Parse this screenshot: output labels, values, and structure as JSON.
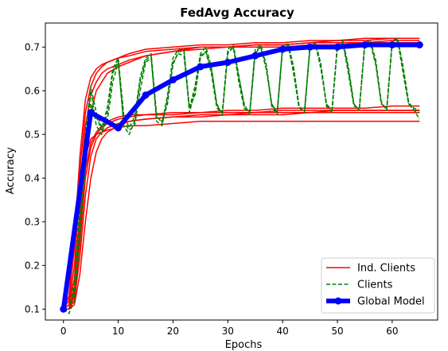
{
  "chart_data": {
    "type": "line",
    "title": "FedAvg Accuracy",
    "xlabel": "Epochs",
    "ylabel": "Accuracy",
    "xlim": [
      -3.3,
      68.3
    ],
    "ylim": [
      0.075,
      0.755
    ],
    "x_ticks": [
      0,
      10,
      20,
      30,
      40,
      50,
      60
    ],
    "y_ticks": [
      0.1,
      0.2,
      0.3,
      0.4,
      0.5,
      0.6,
      0.7
    ],
    "grid": false,
    "legend_position": "lower-right",
    "colors": {
      "ind_clients": "#ff0000",
      "clients": "#008000",
      "global": "#0000ff"
    },
    "series": [
      {
        "name": "Ind. Clients",
        "style": "solid",
        "note": "~20 individual client curves; representative traces",
        "traces": [
          {
            "x": [
              0,
              1,
              2,
              3,
              4,
              5,
              6,
              7,
              8,
              10,
              12,
              15,
              20,
              25,
              30,
              35,
              40,
              45,
              50,
              55,
              60,
              65
            ],
            "y": [
              0.1,
              0.13,
              0.26,
              0.45,
              0.58,
              0.63,
              0.65,
              0.66,
              0.665,
              0.675,
              0.68,
              0.69,
              0.695,
              0.7,
              0.7,
              0.705,
              0.705,
              0.71,
              0.71,
              0.71,
              0.715,
              0.715
            ]
          },
          {
            "x": [
              0,
              1,
              2,
              3,
              4,
              5,
              6,
              7,
              8,
              10,
              12,
              15,
              20,
              25,
              30,
              35,
              40,
              45,
              50,
              55,
              60,
              65
            ],
            "y": [
              0.1,
              0.11,
              0.2,
              0.38,
              0.52,
              0.59,
              0.62,
              0.64,
              0.65,
              0.66,
              0.67,
              0.68,
              0.69,
              0.695,
              0.7,
              0.7,
              0.7,
              0.705,
              0.705,
              0.71,
              0.71,
              0.71
            ]
          },
          {
            "x": [
              0,
              1,
              2,
              3,
              4,
              5,
              6,
              7,
              8,
              10,
              12,
              15,
              20,
              25,
              30,
              35,
              40,
              45,
              50,
              55,
              60,
              65
            ],
            "y": [
              0.1,
              0.1,
              0.15,
              0.3,
              0.46,
              0.55,
              0.6,
              0.62,
              0.64,
              0.655,
              0.665,
              0.68,
              0.69,
              0.7,
              0.7,
              0.705,
              0.705,
              0.71,
              0.715,
              0.715,
              0.72,
              0.72
            ]
          },
          {
            "x": [
              0,
              1,
              2,
              3,
              4,
              5,
              6,
              7,
              8,
              10,
              12,
              15,
              20,
              25,
              30,
              35,
              40,
              45,
              50,
              55,
              60,
              65
            ],
            "y": [
              0.1,
              0.12,
              0.24,
              0.42,
              0.55,
              0.61,
              0.64,
              0.655,
              0.665,
              0.675,
              0.685,
              0.695,
              0.7,
              0.705,
              0.705,
              0.71,
              0.71,
              0.715,
              0.715,
              0.72,
              0.72,
              0.72
            ]
          },
          {
            "x": [
              0,
              1,
              2,
              3,
              4,
              5,
              6,
              7,
              8,
              10,
              12,
              15,
              20,
              25,
              30,
              35,
              40,
              45,
              50,
              55,
              60,
              65
            ],
            "y": [
              0.1,
              0.1,
              0.12,
              0.22,
              0.36,
              0.45,
              0.49,
              0.505,
              0.515,
              0.525,
              0.53,
              0.535,
              0.54,
              0.545,
              0.545,
              0.55,
              0.55,
              0.55,
              0.555,
              0.555,
              0.555,
              0.555
            ]
          },
          {
            "x": [
              0,
              1,
              2,
              3,
              4,
              5,
              6,
              7,
              8,
              10,
              12,
              15,
              20,
              25,
              30,
              35,
              40,
              45,
              50,
              55,
              60,
              65
            ],
            "y": [
              0.1,
              0.1,
              0.14,
              0.28,
              0.42,
              0.48,
              0.505,
              0.52,
              0.53,
              0.54,
              0.545,
              0.545,
              0.55,
              0.55,
              0.555,
              0.555,
              0.56,
              0.56,
              0.56,
              0.56,
              0.565,
              0.565
            ]
          },
          {
            "x": [
              0,
              1,
              2,
              3,
              4,
              5,
              6,
              7,
              8,
              10,
              12,
              15,
              20,
              25,
              30,
              35,
              40,
              45,
              50,
              55,
              60,
              65
            ],
            "y": [
              0.1,
              0.11,
              0.17,
              0.32,
              0.45,
              0.49,
              0.5,
              0.505,
              0.51,
              0.515,
              0.52,
              0.52,
              0.525,
              0.53,
              0.53,
              0.53,
              0.53,
              0.53,
              0.53,
              0.53,
              0.53,
              0.53
            ]
          },
          {
            "x": [
              0,
              1,
              2,
              3,
              4,
              5,
              6,
              7,
              8,
              10,
              12,
              15,
              20,
              25,
              30,
              35,
              40,
              45,
              50,
              55,
              60,
              65
            ],
            "y": [
              0.1,
              0.1,
              0.11,
              0.18,
              0.3,
              0.4,
              0.46,
              0.49,
              0.505,
              0.52,
              0.53,
              0.535,
              0.54,
              0.54,
              0.545,
              0.545,
              0.545,
              0.55,
              0.55,
              0.55,
              0.55,
              0.55
            ]
          },
          {
            "x": [
              0,
              1,
              2,
              3,
              4,
              5,
              6,
              7,
              8,
              10,
              12,
              15,
              20,
              25,
              30,
              35,
              40,
              45,
              50,
              55,
              60,
              65
            ],
            "y": [
              0.1,
              0.1,
              0.13,
              0.25,
              0.4,
              0.47,
              0.5,
              0.515,
              0.525,
              0.535,
              0.54,
              0.545,
              0.545,
              0.55,
              0.55,
              0.55,
              0.555,
              0.555,
              0.555,
              0.555,
              0.555,
              0.555
            ]
          }
        ]
      },
      {
        "name": "Clients",
        "style": "dashed",
        "note": "clients alternating between local (~0.70) and global (~0.55) accuracy",
        "traces": [
          {
            "x": [
              0,
              1,
              2,
              3,
              4,
              5,
              6,
              7,
              8,
              9,
              10,
              11,
              12,
              13,
              14,
              15,
              16,
              17,
              18,
              19,
              20,
              21,
              22,
              23,
              24,
              25,
              26,
              27,
              28,
              29,
              30,
              31,
              32,
              33,
              34,
              35,
              36,
              37,
              38,
              39,
              40,
              41,
              42,
              43,
              44,
              45,
              46,
              47,
              48,
              49,
              50,
              51,
              52,
              53,
              54,
              55,
              56,
              57,
              58,
              59,
              60,
              61,
              62,
              63,
              64,
              65
            ],
            "y": [
              0.1,
              0.1,
              0.14,
              0.3,
              0.46,
              0.6,
              0.52,
              0.5,
              0.55,
              0.64,
              0.67,
              0.52,
              0.5,
              0.53,
              0.62,
              0.67,
              0.68,
              0.53,
              0.52,
              0.58,
              0.66,
              0.69,
              0.69,
              0.55,
              0.6,
              0.68,
              0.69,
              0.64,
              0.56,
              0.55,
              0.69,
              0.7,
              0.62,
              0.56,
              0.55,
              0.69,
              0.7,
              0.65,
              0.57,
              0.55,
              0.7,
              0.705,
              0.64,
              0.56,
              0.555,
              0.7,
              0.705,
              0.65,
              0.57,
              0.555,
              0.705,
              0.71,
              0.64,
              0.565,
              0.56,
              0.705,
              0.71,
              0.66,
              0.57,
              0.56,
              0.71,
              0.715,
              0.64,
              0.57,
              0.56,
              0.555
            ]
          },
          {
            "x": [
              0,
              1,
              2,
              3,
              4,
              5,
              6,
              7,
              8,
              9,
              10,
              11,
              12,
              13,
              14,
              15,
              16,
              17,
              18,
              19,
              20,
              21,
              22,
              23,
              24,
              25,
              26,
              27,
              28,
              29,
              30,
              31,
              32,
              33,
              34,
              35,
              36,
              37,
              38,
              39,
              40,
              41,
              42,
              43,
              44,
              45,
              46,
              47,
              48,
              49,
              50,
              51,
              52,
              53,
              54,
              55,
              56,
              57,
              58,
              59,
              60,
              61,
              62,
              63,
              64,
              65
            ],
            "y": [
              0.1,
              0.09,
              0.12,
              0.26,
              0.42,
              0.57,
              0.54,
              0.51,
              0.53,
              0.62,
              0.665,
              0.53,
              0.51,
              0.52,
              0.6,
              0.665,
              0.675,
              0.54,
              0.53,
              0.57,
              0.665,
              0.685,
              0.68,
              0.56,
              0.59,
              0.675,
              0.69,
              0.65,
              0.57,
              0.545,
              0.685,
              0.7,
              0.63,
              0.57,
              0.545,
              0.685,
              0.7,
              0.66,
              0.565,
              0.545,
              0.695,
              0.705,
              0.65,
              0.565,
              0.55,
              0.7,
              0.71,
              0.66,
              0.565,
              0.55,
              0.7,
              0.71,
              0.65,
              0.57,
              0.555,
              0.705,
              0.715,
              0.665,
              0.575,
              0.555,
              0.71,
              0.72,
              0.65,
              0.57,
              0.555,
              0.55
            ]
          },
          {
            "x": [
              0,
              1,
              2,
              3,
              4,
              5,
              6,
              7,
              8,
              9,
              10,
              11,
              12,
              13,
              14,
              15,
              16,
              17,
              18,
              19,
              20,
              21,
              22,
              23,
              24,
              25,
              26,
              27,
              28,
              29,
              30,
              31,
              32,
              33,
              34,
              35,
              36,
              37,
              38,
              39,
              40,
              41,
              42,
              43,
              44,
              45,
              46,
              47,
              48,
              49,
              50,
              51,
              52,
              53,
              54,
              55,
              56,
              57,
              58,
              59,
              60,
              61,
              62,
              63,
              64,
              65
            ],
            "y": [
              0.1,
              0.1,
              0.16,
              0.34,
              0.5,
              0.61,
              0.55,
              0.515,
              0.56,
              0.65,
              0.675,
              0.545,
              0.515,
              0.54,
              0.63,
              0.675,
              0.685,
              0.545,
              0.525,
              0.59,
              0.675,
              0.695,
              0.695,
              0.56,
              0.61,
              0.685,
              0.7,
              0.655,
              0.565,
              0.55,
              0.695,
              0.705,
              0.635,
              0.565,
              0.55,
              0.695,
              0.705,
              0.66,
              0.57,
              0.55,
              0.7,
              0.71,
              0.655,
              0.565,
              0.55,
              0.705,
              0.71,
              0.66,
              0.57,
              0.55,
              0.705,
              0.715,
              0.655,
              0.57,
              0.555,
              0.71,
              0.715,
              0.67,
              0.575,
              0.555,
              0.715,
              0.72,
              0.655,
              0.575,
              0.555,
              0.535
            ]
          }
        ]
      },
      {
        "name": "Global Model",
        "style": "solid-thick-marker",
        "x": [
          0,
          5,
          10,
          15,
          20,
          25,
          30,
          35,
          40,
          45,
          50,
          55,
          60,
          65
        ],
        "y": [
          0.1,
          0.55,
          0.515,
          0.59,
          0.625,
          0.655,
          0.665,
          0.68,
          0.695,
          0.7,
          0.7,
          0.705,
          0.705,
          0.705
        ]
      }
    ]
  }
}
